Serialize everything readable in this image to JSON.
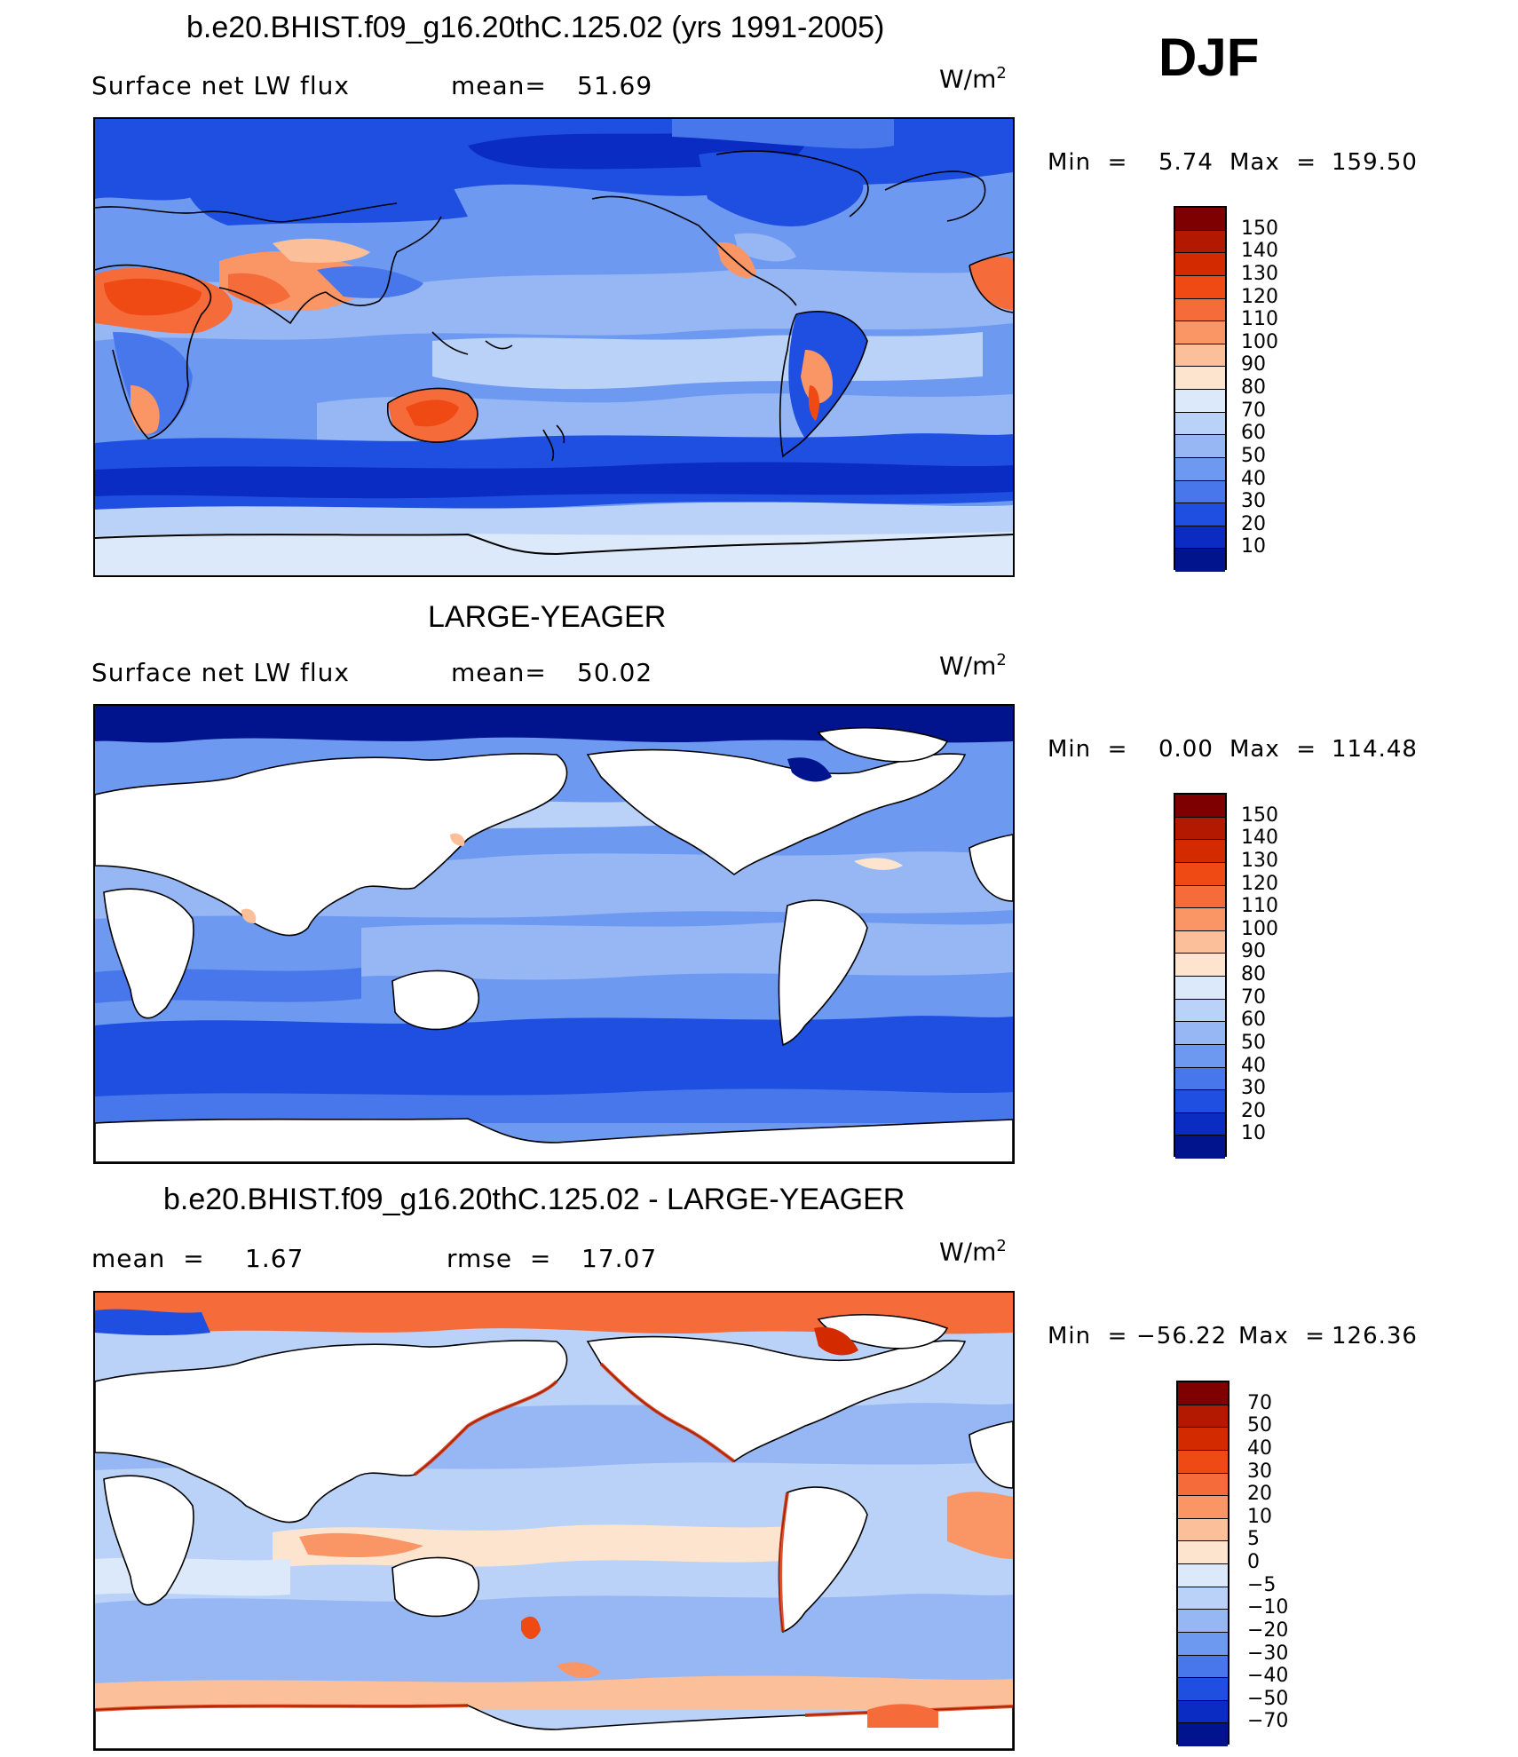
{
  "season": "DJF",
  "panels": [
    {
      "title": "b.e20.BHIST.f09_g16.20thC.125.02 (yrs 1991-2005)",
      "left_text": "Surface net LW flux",
      "stat_label": "mean=",
      "stat_value": "51.69",
      "units_base": "W/m",
      "units_exp": "2",
      "min_label": "Min  =",
      "min_value": "5.74",
      "max_label": "Max  =",
      "max_value": "159.50",
      "colorbar": {
        "labels": [
          "150",
          "140",
          "130",
          "120",
          "110",
          "100",
          "90",
          "80",
          "70",
          "60",
          "50",
          "40",
          "30",
          "20",
          "10"
        ],
        "colors": [
          "#7f0000",
          "#b31800",
          "#d32a00",
          "#ef4a14",
          "#f56b3a",
          "#fa9665",
          "#fbbf9a",
          "#fde4cf",
          "#dbe9fb",
          "#bad2f8",
          "#96b7f4",
          "#6d9af0",
          "#4877eb",
          "#1f4fe0",
          "#0a2cc2",
          "#02138e"
        ]
      }
    },
    {
      "title": "LARGE-YEAGER",
      "left_text": "Surface net LW flux",
      "stat_label": "mean=",
      "stat_value": "50.02",
      "units_base": "W/m",
      "units_exp": "2",
      "min_label": "Min  =",
      "min_value": "0.00",
      "max_label": "Max  =",
      "max_value": "114.48",
      "colorbar": {
        "labels": [
          "150",
          "140",
          "130",
          "120",
          "110",
          "100",
          "90",
          "80",
          "70",
          "60",
          "50",
          "40",
          "30",
          "20",
          "10"
        ],
        "colors": [
          "#7f0000",
          "#b31800",
          "#d32a00",
          "#ef4a14",
          "#f56b3a",
          "#fa9665",
          "#fbbf9a",
          "#fde4cf",
          "#dbe9fb",
          "#bad2f8",
          "#96b7f4",
          "#6d9af0",
          "#4877eb",
          "#1f4fe0",
          "#0a2cc2",
          "#02138e"
        ]
      }
    },
    {
      "title": "b.e20.BHIST.f09_g16.20thC.125.02 - LARGE-YEAGER",
      "left_text": "mean  =",
      "left_value": "1.67",
      "stat_label": "rmse  =",
      "stat_value": "17.07",
      "units_base": "W/m",
      "units_exp": "2",
      "min_label": "Min  =",
      "min_value": "−56.22",
      "max_label": "Max  =",
      "max_value": "126.36",
      "colorbar": {
        "labels": [
          "70",
          "50",
          "40",
          "30",
          "20",
          "10",
          "5",
          "0",
          "−5",
          "−10",
          "−20",
          "−30",
          "−40",
          "−50",
          "−70"
        ],
        "colors": [
          "#7f0000",
          "#b31800",
          "#d32a00",
          "#ef4a14",
          "#f56b3a",
          "#fa9665",
          "#fbbf9a",
          "#fde4cf",
          "#dbe9fb",
          "#bad2f8",
          "#96b7f4",
          "#6d9af0",
          "#4877eb",
          "#1f4fe0",
          "#0a2cc2",
          "#02138e"
        ]
      }
    }
  ]
}
